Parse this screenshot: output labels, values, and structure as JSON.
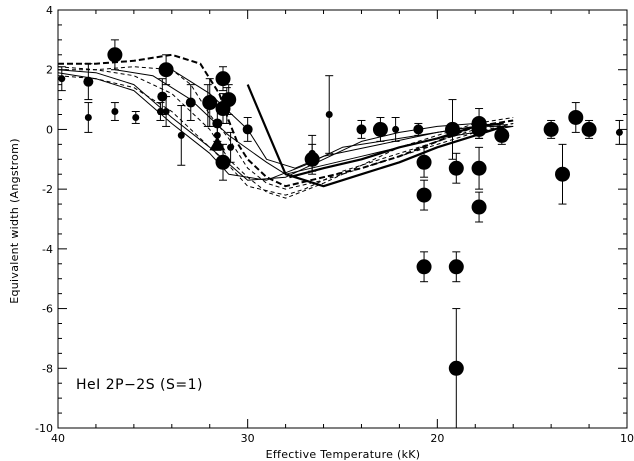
{
  "chart_data": {
    "type": "scatter",
    "xlabel": "Effective Temperature (kK)",
    "ylabel": "Equivalent width (Angstrom)",
    "annotation": "HeI 2P−2S (S=1)",
    "xlim": [
      40,
      10
    ],
    "ylim": [
      -10,
      4
    ],
    "x_ticks": [
      40,
      30,
      20,
      10
    ],
    "y_ticks": [
      -10,
      -8,
      -6,
      -4,
      -2,
      0,
      2,
      4
    ],
    "grid": false,
    "legend": "none",
    "series": [
      {
        "marker": "small-circle",
        "points": [
          {
            "x": 39.8,
            "y": 1.7,
            "err": 0.4
          },
          {
            "x": 38.4,
            "y": 0.4,
            "err": 0.5
          },
          {
            "x": 37.0,
            "y": 0.6,
            "err": 0.3
          },
          {
            "x": 35.9,
            "y": 0.4,
            "err": 0.2
          },
          {
            "x": 34.6,
            "y": 0.6,
            "err": 0.3
          },
          {
            "x": 34.3,
            "y": 0.6,
            "err": 0.5
          },
          {
            "x": 33.5,
            "y": -0.2,
            "err": 1.0
          },
          {
            "x": 32.1,
            "y": 0.8,
            "err": 0.7
          },
          {
            "x": 31.6,
            "y": -0.2,
            "err": 0.5
          },
          {
            "x": 31.1,
            "y": 0.8,
            "err": 0.6
          },
          {
            "x": 30.9,
            "y": -0.6,
            "err": 0.5
          },
          {
            "x": 26.6,
            "y": -0.8,
            "err": 0.6
          },
          {
            "x": 25.7,
            "y": 0.5,
            "err": 1.3
          },
          {
            "x": 22.2,
            "y": 0.0,
            "err": 0.4
          },
          {
            "x": 10.4,
            "y": -0.1,
            "err": 0.4
          }
        ]
      },
      {
        "marker": "medium-circle",
        "points": [
          {
            "x": 38.4,
            "y": 1.6,
            "err": 0.6
          },
          {
            "x": 34.5,
            "y": 1.1,
            "err": 0.6
          },
          {
            "x": 33.0,
            "y": 0.9,
            "err": 0.6
          },
          {
            "x": 31.6,
            "y": 0.2,
            "err": 0.6
          },
          {
            "x": 30.0,
            "y": 0.0,
            "err": 0.4
          },
          {
            "x": 24.0,
            "y": 0.0,
            "err": 0.3
          },
          {
            "x": 21.0,
            "y": 0.0,
            "err": 0.2
          }
        ]
      },
      {
        "marker": "large-circle",
        "points": [
          {
            "x": 37.0,
            "y": 2.5,
            "err": 0.5
          },
          {
            "x": 34.3,
            "y": 2.0,
            "err": 0.5
          },
          {
            "x": 32.0,
            "y": 0.9,
            "err": 0.8
          },
          {
            "x": 31.3,
            "y": 1.7,
            "err": 0.4
          },
          {
            "x": 31.0,
            "y": 1.0,
            "err": 0.5
          },
          {
            "x": 31.3,
            "y": -1.1,
            "err": 0.6
          },
          {
            "x": 31.3,
            "y": 0.7,
            "err": 0.5
          },
          {
            "x": 26.6,
            "y": -1.0,
            "err": 0.5
          },
          {
            "x": 23.0,
            "y": 0.0,
            "err": 0.4
          },
          {
            "x": 20.7,
            "y": -1.1,
            "err": 0.5
          },
          {
            "x": 20.7,
            "y": -2.2,
            "err": 0.5
          },
          {
            "x": 20.7,
            "y": -4.6,
            "err": 0.5
          },
          {
            "x": 19.2,
            "y": 0.0,
            "err": 1.0
          },
          {
            "x": 19.0,
            "y": -1.3,
            "err": 0.5
          },
          {
            "x": 19.0,
            "y": -4.6,
            "err": 0.5
          },
          {
            "x": 19.0,
            "y": -8.0,
            "err": 2.0
          },
          {
            "x": 17.8,
            "y": 0.2,
            "err": 0.5
          },
          {
            "x": 17.8,
            "y": 0.0,
            "err": 0.3
          },
          {
            "x": 17.8,
            "y": -1.3,
            "err": 0.7
          },
          {
            "x": 17.8,
            "y": -2.6,
            "err": 0.5
          },
          {
            "x": 16.6,
            "y": -0.2,
            "err": 0.3
          },
          {
            "x": 14.0,
            "y": 0.0,
            "err": 0.3
          },
          {
            "x": 13.4,
            "y": -1.5,
            "err": 1.0
          },
          {
            "x": 12.7,
            "y": 0.4,
            "err": 0.5
          },
          {
            "x": 12.0,
            "y": 0.0,
            "err": 0.3
          }
        ]
      },
      {
        "marker": "triangle",
        "points": [
          {
            "x": 31.6,
            "y": -0.5,
            "err": 0
          }
        ]
      }
    ],
    "model_curves": [
      {
        "style": "solid-thin",
        "points": [
          [
            40,
            2.0
          ],
          [
            38,
            1.9
          ],
          [
            36,
            1.5
          ],
          [
            34,
            0.4
          ],
          [
            32,
            -0.6
          ],
          [
            30,
            -1.7
          ],
          [
            28,
            -1.6
          ],
          [
            26,
            -1.0
          ],
          [
            24,
            -0.4
          ],
          [
            22,
            -0.1
          ],
          [
            20,
            0.1
          ],
          [
            18,
            0.2
          ]
        ]
      },
      {
        "style": "solid-thin",
        "points": [
          [
            40,
            1.9
          ],
          [
            38,
            1.7
          ],
          [
            36,
            1.3
          ],
          [
            34,
            0.2
          ],
          [
            32,
            -0.8
          ],
          [
            31,
            -1.5
          ],
          [
            29,
            -1.7
          ],
          [
            27,
            -1.2
          ],
          [
            25,
            -0.6
          ],
          [
            22,
            -0.3
          ],
          [
            20,
            -0.1
          ],
          [
            18,
            0.1
          ]
        ]
      },
      {
        "style": "solid-thin",
        "points": [
          [
            37,
            2.0
          ],
          [
            35,
            1.8
          ],
          [
            33,
            1.0
          ],
          [
            31,
            -0.2
          ],
          [
            29,
            -1.1
          ],
          [
            28,
            -1.5
          ],
          [
            26,
            -1.2
          ],
          [
            24,
            -0.9
          ],
          [
            22,
            -0.6
          ],
          [
            20,
            -0.3
          ],
          [
            18,
            -0.1
          ],
          [
            16,
            0.1
          ]
        ]
      },
      {
        "style": "solid-thin",
        "points": [
          [
            34,
            2.0
          ],
          [
            32,
            1.2
          ],
          [
            30,
            0.0
          ],
          [
            29,
            -1.0
          ],
          [
            27.5,
            -1.3
          ],
          [
            26,
            -0.9
          ],
          [
            23,
            -0.5
          ],
          [
            20,
            -0.1
          ],
          [
            18,
            0.1
          ],
          [
            16,
            0.1
          ]
        ]
      },
      {
        "style": "solid-thick",
        "points": [
          [
            30.0,
            1.5
          ],
          [
            29,
            0.0
          ],
          [
            28,
            -1.5
          ],
          [
            27,
            -1.7
          ],
          [
            26,
            -1.9
          ],
          [
            24,
            -1.5
          ],
          [
            22,
            -1.1
          ],
          [
            20,
            -0.6
          ],
          [
            18,
            -0.2
          ],
          [
            16.5,
            0.1
          ]
        ]
      },
      {
        "style": "solid-thick",
        "points": [
          [
            27.8,
            -1.6
          ],
          [
            26,
            -1.3
          ],
          [
            24,
            -1.0
          ],
          [
            22,
            -0.6
          ],
          [
            20,
            -0.3
          ],
          [
            18,
            0.1
          ],
          [
            16.5,
            0.2
          ]
        ]
      },
      {
        "style": "dashed-thick",
        "points": [
          [
            40,
            2.2
          ],
          [
            38,
            2.2
          ],
          [
            36,
            2.3
          ],
          [
            34,
            2.5
          ],
          [
            32.5,
            2.2
          ],
          [
            31.5,
            1.2
          ],
          [
            31,
            0.3
          ],
          [
            30.5,
            -0.5
          ],
          [
            30,
            -1.0
          ],
          [
            29,
            -1.6
          ],
          [
            28,
            -1.9
          ],
          [
            26,
            -1.6
          ],
          [
            24,
            -1.3
          ],
          [
            22,
            -0.9
          ],
          [
            20,
            -0.4
          ],
          [
            18,
            0.1
          ],
          [
            16,
            0.3
          ]
        ]
      },
      {
        "style": "dashed-thin",
        "points": [
          [
            40,
            2.0
          ],
          [
            38,
            2.0
          ],
          [
            36,
            2.1
          ],
          [
            34,
            2.0
          ],
          [
            33,
            1.5
          ],
          [
            32,
            0.5
          ],
          [
            31,
            -0.3
          ],
          [
            30,
            -1.3
          ],
          [
            29,
            -1.8
          ],
          [
            28,
            -2.0
          ],
          [
            26,
            -1.7
          ],
          [
            24,
            -1.3
          ],
          [
            22,
            -0.9
          ],
          [
            20,
            -0.5
          ],
          [
            18,
            -0.1
          ],
          [
            16,
            0.2
          ]
        ]
      },
      {
        "style": "dashed-thin",
        "points": [
          [
            40,
            2.1
          ],
          [
            38,
            2.0
          ],
          [
            36,
            1.8
          ],
          [
            34,
            1.2
          ],
          [
            32,
            0.0
          ],
          [
            31,
            -1.0
          ],
          [
            30,
            -1.6
          ],
          [
            29,
            -2.1
          ],
          [
            28,
            -2.3
          ],
          [
            26,
            -1.8
          ],
          [
            24,
            -1.2
          ],
          [
            22,
            -0.6
          ],
          [
            20,
            -0.2
          ],
          [
            18,
            0.2
          ],
          [
            16,
            0.4
          ]
        ]
      },
      {
        "style": "dashed-thin",
        "points": [
          [
            40,
            1.8
          ],
          [
            38,
            1.7
          ],
          [
            36,
            1.4
          ],
          [
            34,
            0.6
          ],
          [
            33,
            0.0
          ],
          [
            32,
            -0.6
          ],
          [
            31,
            -1.2
          ],
          [
            30,
            -1.9
          ],
          [
            28,
            -2.2
          ],
          [
            27,
            -2.0
          ],
          [
            25,
            -1.4
          ],
          [
            22,
            -0.8
          ],
          [
            20,
            -0.4
          ],
          [
            18,
            0.0
          ],
          [
            16,
            0.2
          ]
        ]
      }
    ]
  }
}
